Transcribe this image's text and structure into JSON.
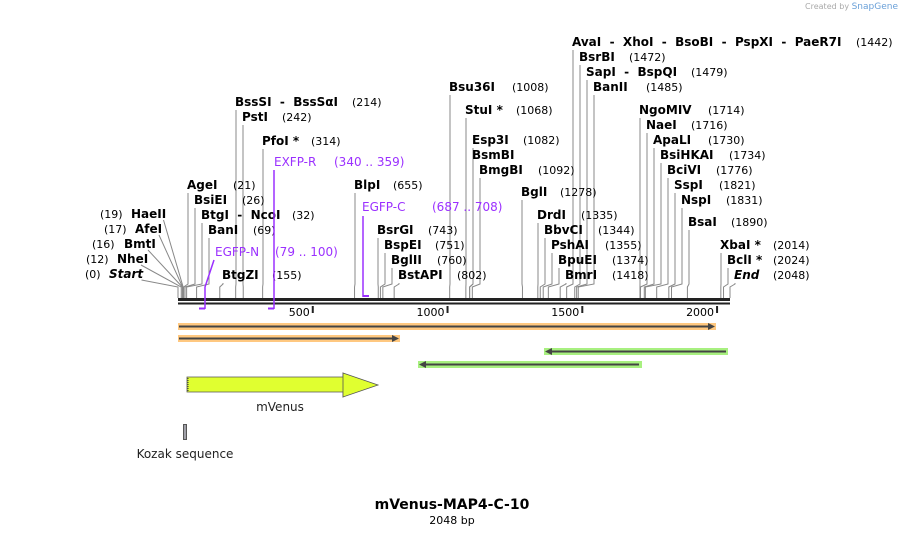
{
  "credit": {
    "prefix": "Created by",
    "brand": "SnapGene"
  },
  "map": {
    "title": "mVenus-MAP4-C-10",
    "length_label": "2048 bp",
    "length_bp": 2048,
    "ticks": [
      "500",
      "1000",
      "1500",
      "2000"
    ]
  },
  "sites": [
    {
      "name": "HaeII",
      "pos": 19,
      "num": "(19)"
    },
    {
      "name": "AfeI",
      "pos": 17,
      "num": "(17)"
    },
    {
      "name": "BmtI",
      "pos": 16,
      "num": "(16)"
    },
    {
      "name": "NheI",
      "pos": 12,
      "num": "(12)"
    },
    {
      "name": "Start",
      "pos": 0,
      "num": "(0)"
    },
    {
      "name": "AgeI",
      "pos": 21,
      "num": "(21)"
    },
    {
      "name": "BsiEI",
      "pos": 26,
      "num": "(26)"
    },
    {
      "name": "BtgI  -  NcoI",
      "pos": 32,
      "num": "(32)"
    },
    {
      "name": "BanI",
      "pos": 69,
      "num": "(69)"
    },
    {
      "name": "BtgZI",
      "pos": 155,
      "num": "(155)"
    },
    {
      "name": "BssSI  -  BssSαI",
      "pos": 214,
      "num": "(214)"
    },
    {
      "name": "PstI",
      "pos": 242,
      "num": "(242)"
    },
    {
      "name": "PfoI *",
      "pos": 314,
      "num": "(314)"
    },
    {
      "name": "BlpI",
      "pos": 655,
      "num": "(655)"
    },
    {
      "name": "BsrGI",
      "pos": 743,
      "num": "(743)"
    },
    {
      "name": "BspEI",
      "pos": 751,
      "num": "(751)"
    },
    {
      "name": "BglII",
      "pos": 760,
      "num": "(760)"
    },
    {
      "name": "BstAPI",
      "pos": 802,
      "num": "(802)"
    },
    {
      "name": "Bsu36I",
      "pos": 1008,
      "num": "(1008)"
    },
    {
      "name": "StuI *",
      "pos": 1068,
      "num": "(1068)"
    },
    {
      "name": "Esp3I",
      "pos": 1082,
      "num": "(1082)"
    },
    {
      "name": "BsmBI",
      "pos": 1082,
      "num": ""
    },
    {
      "name": "BmgBI",
      "pos": 1092,
      "num": "(1092)"
    },
    {
      "name": "BglI",
      "pos": 1278,
      "num": "(1278)"
    },
    {
      "name": "DrdI",
      "pos": 1335,
      "num": "(1335)"
    },
    {
      "name": "BbvCI",
      "pos": 1344,
      "num": "(1344)"
    },
    {
      "name": "PshAI",
      "pos": 1355,
      "num": "(1355)"
    },
    {
      "name": "BpuEI",
      "pos": 1374,
      "num": "(1374)"
    },
    {
      "name": "BmrI",
      "pos": 1418,
      "num": "(1418)"
    },
    {
      "name": "AvaI  -  XhoI  -  BsoBI  -  PspXI  -  PaeR7I",
      "pos": 1442,
      "num": "(1442)"
    },
    {
      "name": "BsrBI",
      "pos": 1472,
      "num": "(1472)"
    },
    {
      "name": "SapI  -  BspQI",
      "pos": 1479,
      "num": "(1479)"
    },
    {
      "name": "BanII",
      "pos": 1485,
      "num": "(1485)"
    },
    {
      "name": "NgoMIV",
      "pos": 1714,
      "num": "(1714)"
    },
    {
      "name": "NaeI",
      "pos": 1716,
      "num": "(1716)"
    },
    {
      "name": "ApaLI",
      "pos": 1730,
      "num": "(1730)"
    },
    {
      "name": "BsiHKAI",
      "pos": 1734,
      "num": "(1734)"
    },
    {
      "name": "BciVI",
      "pos": 1776,
      "num": "(1776)"
    },
    {
      "name": "SspI",
      "pos": 1821,
      "num": "(1821)"
    },
    {
      "name": "NspI",
      "pos": 1831,
      "num": "(1831)"
    },
    {
      "name": "BsaI",
      "pos": 1890,
      "num": "(1890)"
    },
    {
      "name": "XbaI *",
      "pos": 2014,
      "num": "(2014)"
    },
    {
      "name": "BclI *",
      "pos": 2024,
      "num": "(2024)"
    },
    {
      "name": "End",
      "pos": 2048,
      "num": "(2048)"
    }
  ],
  "primers": [
    {
      "name": "EXFP-R",
      "range": "(340 .. 359)",
      "start": 340,
      "end": 359,
      "strand": "reverse"
    },
    {
      "name": "EGFP-N",
      "range": "(79 .. 100)",
      "start": 79,
      "end": 100,
      "strand": "forward"
    },
    {
      "name": "EGFP-C",
      "range": "(687 .. 708)",
      "start": 687,
      "end": 708,
      "strand": "forward"
    }
  ],
  "features": [
    {
      "name": "mVenus",
      "start": 35,
      "end": 754,
      "color": "#e0ff30"
    },
    {
      "name": "Kozak sequence",
      "start": 25,
      "end": 34,
      "color": "#a0a0a8"
    }
  ],
  "colors": {
    "orf": "#ffc880",
    "orf_rev": "#a8f080",
    "primer": "#9b30ff"
  }
}
